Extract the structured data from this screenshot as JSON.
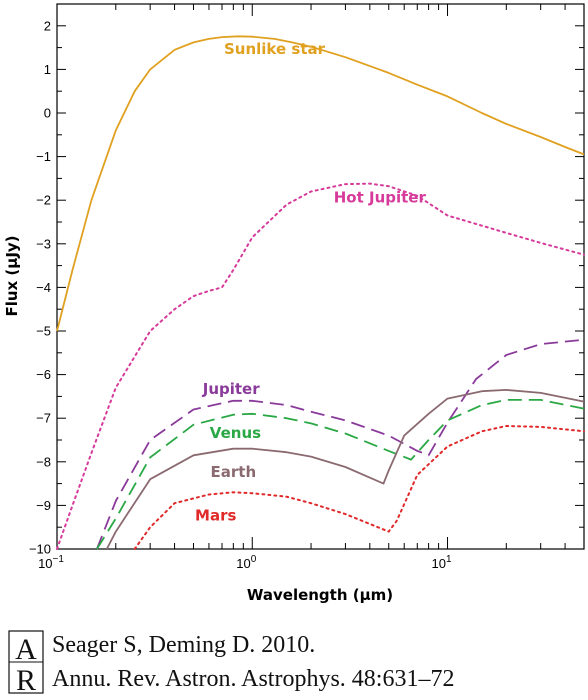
{
  "chart_data": {
    "type": "line",
    "xlabel": "Wavelength (μm)",
    "ylabel": "Flux (μJy)",
    "x_scale": "log",
    "xlim": [
      0.1,
      50
    ],
    "ylim": [
      -10,
      2.5
    ],
    "x_ticks": [
      {
        "value": 0.1,
        "base": "10",
        "exp": "−1"
      },
      {
        "value": 1,
        "base": "10",
        "exp": "0"
      },
      {
        "value": 10,
        "base": "10",
        "exp": "1"
      }
    ],
    "y_ticks": [
      {
        "value": 2,
        "label": "2"
      },
      {
        "value": 1,
        "label": "1"
      },
      {
        "value": 0,
        "label": "0"
      },
      {
        "value": -1,
        "label": "−1"
      },
      {
        "value": -2,
        "label": "−2"
      },
      {
        "value": -3,
        "label": "−3"
      },
      {
        "value": -4,
        "label": "−4"
      },
      {
        "value": -5,
        "label": "−5"
      },
      {
        "value": -6,
        "label": "−6"
      },
      {
        "value": -7,
        "label": "−7"
      },
      {
        "value": -8,
        "label": "−8"
      },
      {
        "value": -9,
        "label": "−9"
      },
      {
        "value": -10,
        "label": "−10"
      }
    ],
    "grid": false,
    "legend": "none",
    "series": [
      {
        "name": "Sunlike star",
        "color": "#e0a020",
        "style": "solid",
        "label_at": [
          1.3,
          1.35
        ],
        "x": [
          0.1,
          0.12,
          0.15,
          0.2,
          0.25,
          0.3,
          0.4,
          0.5,
          0.6,
          0.7,
          0.85,
          1.0,
          1.3,
          1.6,
          2,
          3,
          5,
          7,
          10,
          15,
          20,
          30,
          40,
          50
        ],
        "y": [
          -5,
          -3.6,
          -2.0,
          -0.4,
          0.5,
          1.0,
          1.45,
          1.62,
          1.7,
          1.74,
          1.76,
          1.75,
          1.7,
          1.62,
          1.52,
          1.28,
          0.92,
          0.65,
          0.38,
          0.0,
          -0.25,
          -0.55,
          -0.78,
          -0.95
        ]
      },
      {
        "name": "Hot Jupiter",
        "color": "#d63a9a",
        "style": "dotted",
        "label_at": [
          4.5,
          -2.05
        ],
        "x": [
          0.1,
          0.12,
          0.15,
          0.2,
          0.3,
          0.4,
          0.5,
          0.6,
          0.7,
          0.8,
          1.0,
          1.5,
          2,
          3,
          4,
          5,
          7,
          10,
          20,
          30,
          50
        ],
        "y": [
          -10,
          -9.0,
          -7.8,
          -6.3,
          -5.0,
          -4.5,
          -4.2,
          -4.08,
          -4.0,
          -3.6,
          -2.85,
          -2.1,
          -1.8,
          -1.63,
          -1.62,
          -1.68,
          -1.9,
          -2.35,
          -2.75,
          -2.98,
          -3.25
        ]
      },
      {
        "name": "Jupiter",
        "color": "#8a3a9a",
        "style": "dashed",
        "label_at": [
          0.78,
          -6.45
        ],
        "x": [
          0.16,
          0.2,
          0.3,
          0.5,
          0.8,
          1.0,
          1.5,
          2,
          3,
          5,
          7,
          8,
          10,
          14,
          20,
          30,
          50
        ],
        "y": [
          -10,
          -8.9,
          -7.5,
          -6.8,
          -6.6,
          -6.6,
          -6.7,
          -6.85,
          -7.05,
          -7.4,
          -7.75,
          -7.85,
          -7.1,
          -6.1,
          -5.55,
          -5.3,
          -5.2
        ]
      },
      {
        "name": "Venus",
        "color": "#2aa845",
        "style": "dashed",
        "label_at": [
          0.82,
          -7.45
        ],
        "x": [
          0.16,
          0.2,
          0.3,
          0.5,
          0.8,
          1.0,
          1.5,
          2,
          3,
          5,
          6.5,
          8,
          10,
          15,
          20,
          30,
          50
        ],
        "y": [
          -10,
          -9.3,
          -7.9,
          -7.15,
          -6.92,
          -6.9,
          -7.0,
          -7.12,
          -7.35,
          -7.75,
          -7.95,
          -7.5,
          -7.05,
          -6.7,
          -6.58,
          -6.58,
          -6.78
        ]
      },
      {
        "name": "Earth",
        "color": "#8a6a70",
        "style": "solid",
        "label_at": [
          0.8,
          -8.35
        ],
        "x": [
          0.18,
          0.2,
          0.3,
          0.5,
          0.8,
          1.0,
          1.5,
          2,
          3,
          4.7,
          5,
          6,
          8,
          10,
          15,
          20,
          30,
          50
        ],
        "y": [
          -10,
          -9.6,
          -8.4,
          -7.85,
          -7.7,
          -7.7,
          -7.78,
          -7.88,
          -8.12,
          -8.5,
          -8.2,
          -7.4,
          -6.9,
          -6.55,
          -6.38,
          -6.35,
          -6.42,
          -6.62
        ]
      },
      {
        "name": "Mars",
        "color": "#e02a2a",
        "style": "dotted",
        "label_at": [
          0.65,
          -9.35
        ],
        "x": [
          0.25,
          0.3,
          0.4,
          0.6,
          0.8,
          1.0,
          1.5,
          2,
          3,
          5,
          5.5,
          7,
          10,
          15,
          20,
          30,
          50
        ],
        "y": [
          -10,
          -9.5,
          -8.95,
          -8.75,
          -8.7,
          -8.72,
          -8.8,
          -8.95,
          -9.2,
          -9.6,
          -9.35,
          -8.3,
          -7.65,
          -7.3,
          -7.18,
          -7.2,
          -7.3
        ]
      }
    ]
  },
  "citation": {
    "logo": "AR",
    "line1": "Seager S, Deming D. 2010.",
    "line2": "Annu. Rev. Astron. Astrophys. 48:631–72"
  }
}
